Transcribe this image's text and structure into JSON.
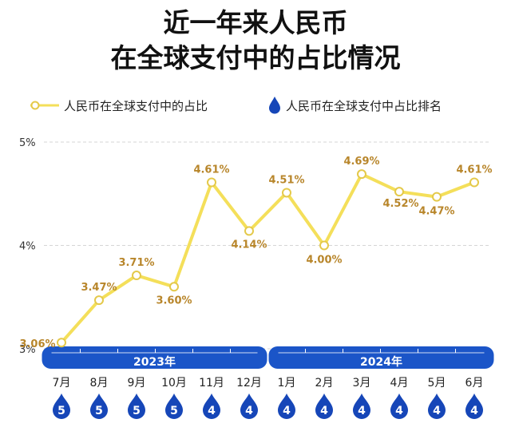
{
  "title_line1": "近一年来人民币",
  "title_line2": "在全球支付中的占比情况",
  "legend": {
    "share_label": "人民币在全球支付中的占比",
    "rank_label": "人民币在全球支付中占比排名"
  },
  "colors": {
    "line": "#f4df5a",
    "point_fill": "#ffffff",
    "value_label": "#b8862b",
    "band": "#1b55c8",
    "drop": "#1646b8",
    "grid": "#d6d6d6",
    "axis_text": "#333333"
  },
  "chart_data": {
    "type": "line",
    "title": "近一年来人民币在全球支付中的占比情况",
    "ylim": [
      3,
      5
    ],
    "yticks": [
      "3%",
      "4%",
      "5%"
    ],
    "grid": true,
    "legend_position": "top-left",
    "years": [
      {
        "label": "2023年",
        "months": 6
      },
      {
        "label": "2024年",
        "months": 6
      }
    ],
    "categories": [
      "7月",
      "8月",
      "9月",
      "10月",
      "11月",
      "12月",
      "1月",
      "2月",
      "3月",
      "4月",
      "5月",
      "6月"
    ],
    "series": [
      {
        "name": "人民币在全球支付中的占比",
        "values": [
          3.06,
          3.47,
          3.71,
          3.6,
          4.61,
          4.14,
          4.51,
          4.0,
          4.69,
          4.52,
          4.47,
          4.61
        ],
        "labels": [
          "3.06%",
          "3.47%",
          "3.71%",
          "3.60%",
          "4.61%",
          "4.14%",
          "4.51%",
          "4.00%",
          "4.69%",
          "4.52%",
          "4.47%",
          "4.61%"
        ]
      },
      {
        "name": "人民币在全球支付中占比排名",
        "values": [
          5,
          5,
          5,
          5,
          4,
          4,
          4,
          4,
          4,
          4,
          4,
          4
        ]
      }
    ]
  }
}
